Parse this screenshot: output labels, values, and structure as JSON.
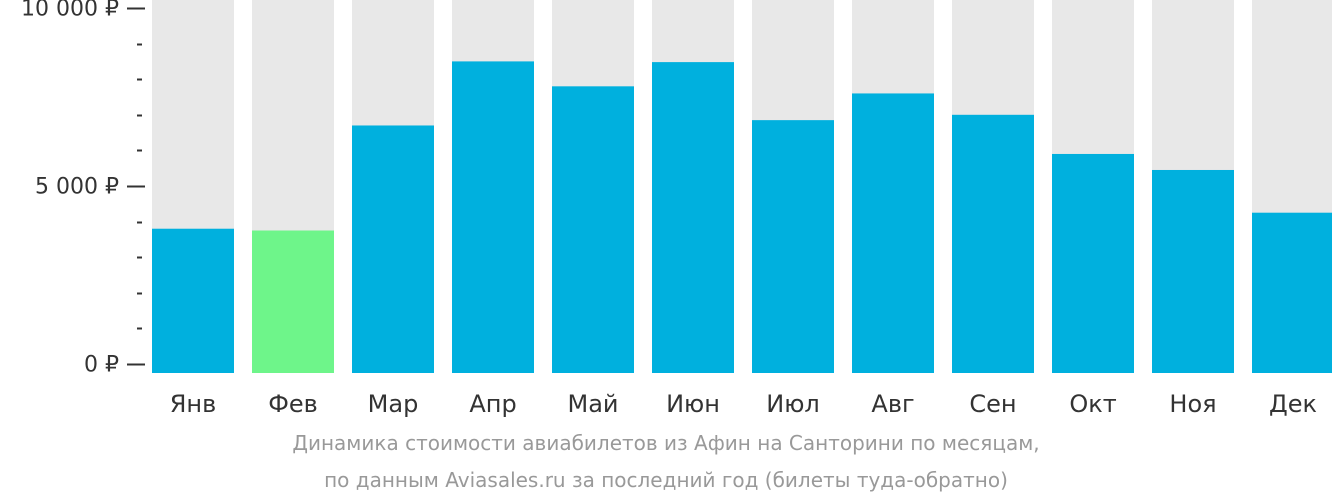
{
  "chart_data": {
    "type": "bar",
    "categories": [
      "Янв",
      "Фев",
      "Мар",
      "Апр",
      "Май",
      "Июн",
      "Июл",
      "Авг",
      "Сен",
      "Окт",
      "Ноя",
      "Дек"
    ],
    "values": [
      3800,
      3750,
      6700,
      8500,
      7800,
      8480,
      6850,
      7600,
      7000,
      5900,
      5450,
      4250
    ],
    "highlight_index": 1,
    "ylim": [
      0,
      10000
    ],
    "y_ticks": [
      {
        "value": 0,
        "label": "0 ₽"
      },
      {
        "value": 5000,
        "label": "5 000 ₽"
      },
      {
        "value": 10000,
        "label": "10 000 ₽"
      }
    ],
    "y_minor_step": 1000,
    "caption_line1": "Динамика стоимости авиабилетов из Афин на Санторини по месяцам,",
    "caption_line2": "по данным Aviasales.ru за последний год (билеты туда-обратно)",
    "colors": {
      "bar": "#00b0de",
      "highlight": "#6ef58a",
      "background_column": "#e8e8e8",
      "axis": "#333333",
      "caption": "#999999"
    },
    "grid": false,
    "legend": "none"
  }
}
